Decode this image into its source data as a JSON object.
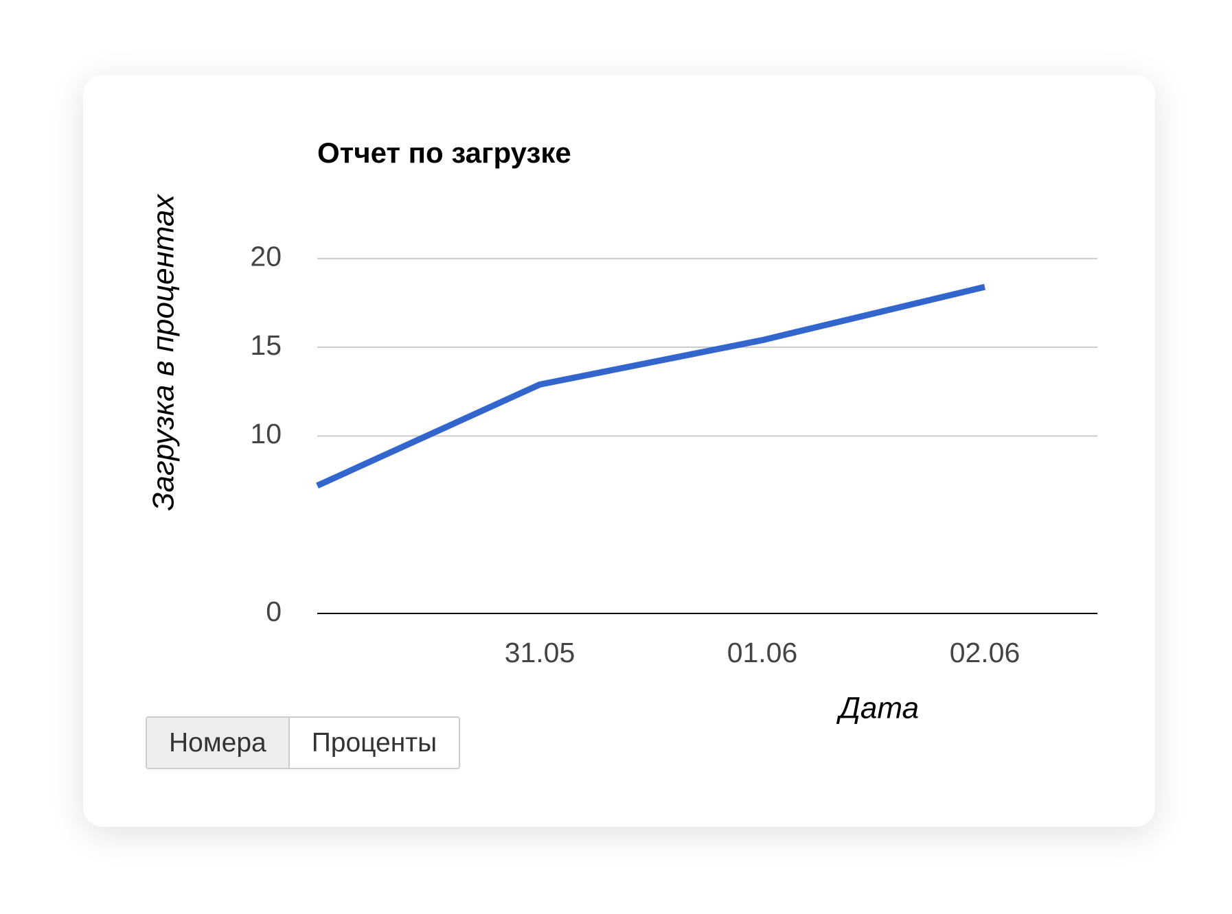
{
  "chart_data": {
    "type": "line",
    "title": "Отчет по загрузке",
    "y_label": "Загрузка в процентах",
    "x_label": "Дата",
    "categories": [
      null,
      "31.05",
      "01.06",
      "02.06"
    ],
    "series": [
      {
        "name": "Загрузка",
        "color": "#3366cc",
        "values": [
          7.2,
          12.9,
          15.4,
          18.4
        ]
      }
    ],
    "ylim": [
      0,
      22
    ],
    "yticks": [
      0,
      10,
      15,
      20
    ],
    "grid": true
  },
  "controls": [
    "Номера",
    "Проценты"
  ]
}
